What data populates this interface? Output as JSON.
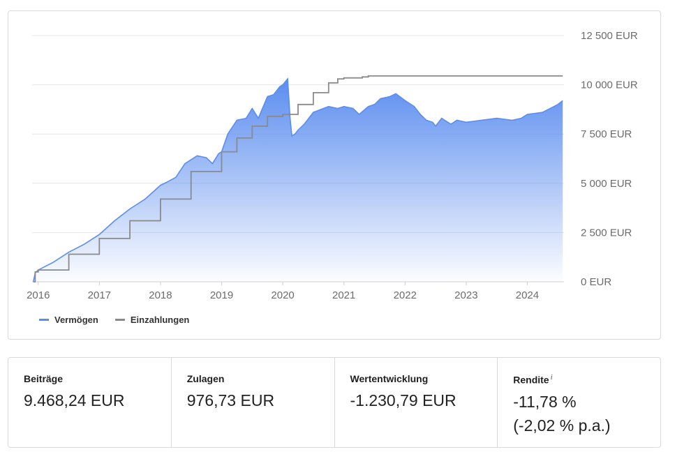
{
  "legend": {
    "series_1": "Vermögen",
    "series_2": "Einzahlungen"
  },
  "colors": {
    "vermoegen": "#5b8def",
    "einzahlungen": "#8a8a8a"
  },
  "stats": {
    "beitraege": {
      "label": "Beiträge",
      "value": "9.468,24 EUR"
    },
    "zulagen": {
      "label": "Zulagen",
      "value": "976,73 EUR"
    },
    "wertentwicklung": {
      "label": "Wertentwicklung",
      "value": "-1.230,79 EUR"
    },
    "rendite": {
      "label": "Rendite",
      "info": "i",
      "value": "-11,78 %",
      "value_pa": "(-2,02 % p.a.)"
    }
  },
  "chart_data": {
    "type": "area",
    "y_tick_labels": [
      "0 EUR",
      "2 500 EUR",
      "5 000 EUR",
      "7 500 EUR",
      "10 000 EUR",
      "12 500 EUR"
    ],
    "y_ticks": [
      0,
      2500,
      5000,
      7500,
      10000,
      12500
    ],
    "x_tick_labels": [
      "2016",
      "2017",
      "2018",
      "2019",
      "2020",
      "2021",
      "2022",
      "2023",
      "2024"
    ],
    "x_ticks": [
      2016,
      2017,
      2018,
      2019,
      2020,
      2021,
      2022,
      2023,
      2024
    ],
    "xlim": [
      2015.9,
      2024.6
    ],
    "ylim": [
      0,
      12500
    ],
    "grid": true,
    "legend_position": "bottom-left",
    "series": [
      {
        "name": "Vermögen",
        "type": "area",
        "x": [
          2015.92,
          2015.95,
          2016.0,
          2016.25,
          2016.5,
          2016.75,
          2017.0,
          2017.25,
          2017.5,
          2017.75,
          2018.0,
          2018.1,
          2018.25,
          2018.4,
          2018.6,
          2018.75,
          2018.85,
          2018.95,
          2019.0,
          2019.1,
          2019.25,
          2019.4,
          2019.5,
          2019.6,
          2019.75,
          2019.85,
          2019.95,
          2020.0,
          2020.08,
          2020.12,
          2020.15,
          2020.2,
          2020.25,
          2020.35,
          2020.5,
          2020.75,
          2020.9,
          2021.0,
          2021.15,
          2021.25,
          2021.4,
          2021.5,
          2021.6,
          2021.75,
          2021.85,
          2022.0,
          2022.15,
          2022.25,
          2022.35,
          2022.45,
          2022.5,
          2022.6,
          2022.75,
          2022.85,
          2023.0,
          2023.25,
          2023.5,
          2023.75,
          2023.9,
          2024.0,
          2024.25,
          2024.5,
          2024.58
        ],
        "y": [
          0,
          450,
          600,
          1000,
          1500,
          1900,
          2400,
          3100,
          3700,
          4200,
          4900,
          5050,
          5300,
          6000,
          6400,
          6300,
          6000,
          6500,
          6600,
          7500,
          8200,
          8300,
          8800,
          8300,
          9400,
          9500,
          9900,
          10000,
          10300,
          8300,
          7400,
          7500,
          7700,
          8000,
          8600,
          8900,
          8800,
          8900,
          8800,
          8500,
          8900,
          9000,
          9300,
          9400,
          9550,
          9200,
          8900,
          8500,
          8200,
          8100,
          7900,
          8300,
          8000,
          8200,
          8100,
          8200,
          8300,
          8200,
          8300,
          8500,
          8600,
          9000,
          9200
        ]
      },
      {
        "name": "Einzahlungen",
        "type": "line",
        "x": [
          2015.92,
          2015.95,
          2016.0,
          2016.5,
          2017.0,
          2017.5,
          2018.0,
          2018.5,
          2019.0,
          2019.25,
          2019.5,
          2019.75,
          2020.0,
          2020.25,
          2020.5,
          2020.75,
          2020.9,
          2021.0,
          2021.3,
          2021.4,
          2024.58
        ],
        "y": [
          0,
          500,
          600,
          1400,
          2200,
          3100,
          4200,
          5600,
          6600,
          7300,
          7900,
          8400,
          8500,
          9000,
          9600,
          10100,
          10300,
          10350,
          10400,
          10450,
          10450
        ]
      }
    ]
  }
}
